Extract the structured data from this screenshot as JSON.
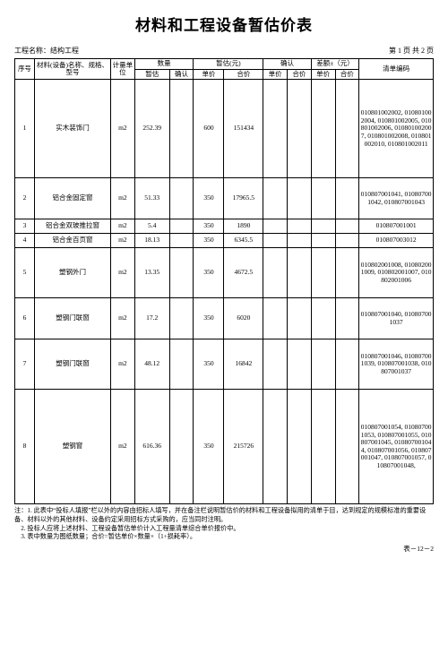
{
  "title": "材料和工程设备暂估价表",
  "meta": {
    "project_label": "工程名称：",
    "project_name": "结构工程",
    "page_info": "第 1 页 共 2 页"
  },
  "headers": {
    "seq": "序号",
    "name": "材料(设备)名称、规格、型号",
    "unit": "计量单位",
    "qty_group": "数量",
    "qty_est": "暂估",
    "qty_conf": "确认",
    "price_group": "暂估(元)",
    "price_unit": "单价",
    "price_total": "合价",
    "conf_group": "确认",
    "conf_unit": "单价",
    "conf_total": "合价",
    "diff_group": "差额±（元）",
    "diff_unit": "单价",
    "diff_total": "合价",
    "code": "清单编码"
  },
  "rows": [
    {
      "seq": "1",
      "name": "实木装饰门",
      "unit": "m2",
      "qty_est": "252.39",
      "qty_conf": "",
      "price_unit": "600",
      "price_total": "151434",
      "conf_unit": "",
      "conf_total": "",
      "diff_unit": "",
      "diff_total": "",
      "codes": "010801002002, 010801002004, 010801002005, 010801002006, 010801002007, 010801002008, 010801002010, 010801002011",
      "h": "row-tall"
    },
    {
      "seq": "2",
      "name": "铝合金固定窗",
      "unit": "m2",
      "qty_est": "51.33",
      "qty_conf": "",
      "price_unit": "350",
      "price_total": "17965.5",
      "conf_unit": "",
      "conf_total": "",
      "diff_unit": "",
      "diff_total": "",
      "codes": "010807001041, 010807001042, 010807001043",
      "h": "row-med"
    },
    {
      "seq": "3",
      "name": "铝合金双玻推拉窗",
      "unit": "m2",
      "qty_est": "5.4",
      "qty_conf": "",
      "price_unit": "350",
      "price_total": "1890",
      "conf_unit": "",
      "conf_total": "",
      "diff_unit": "",
      "diff_total": "",
      "codes": "010807001001",
      "h": "row-xs"
    },
    {
      "seq": "4",
      "name": "铝合金百页窗",
      "unit": "m2",
      "qty_est": "18.13",
      "qty_conf": "",
      "price_unit": "350",
      "price_total": "6345.5",
      "conf_unit": "",
      "conf_total": "",
      "diff_unit": "",
      "diff_total": "",
      "codes": "010807003012",
      "h": "row-xs"
    },
    {
      "seq": "5",
      "name": "塑钢外门",
      "unit": "m2",
      "qty_est": "13.35",
      "qty_conf": "",
      "price_unit": "350",
      "price_total": "4672.5",
      "conf_unit": "",
      "conf_total": "",
      "diff_unit": "",
      "diff_total": "",
      "codes": "010802001008, 010802001009, 010802001007, 010802001006",
      "h": "row-lg"
    },
    {
      "seq": "6",
      "name": "塑钢门联窗",
      "unit": "m2",
      "qty_est": "17.2",
      "qty_conf": "",
      "price_unit": "350",
      "price_total": "6020",
      "conf_unit": "",
      "conf_total": "",
      "diff_unit": "",
      "diff_total": "",
      "codes": "010807001040, 010807001037",
      "h": "row-med"
    },
    {
      "seq": "7",
      "name": "塑钢门联窗",
      "unit": "m2",
      "qty_est": "48.12",
      "qty_conf": "",
      "price_unit": "350",
      "price_total": "16842",
      "conf_unit": "",
      "conf_total": "",
      "diff_unit": "",
      "diff_total": "",
      "codes": "010807001046, 010807001039, 010807001038, 010807001037",
      "h": "row-lg"
    },
    {
      "seq": "8",
      "name": "塑钢窗",
      "unit": "m2",
      "qty_est": "616.36",
      "qty_conf": "",
      "price_unit": "350",
      "price_total": "215726",
      "conf_unit": "",
      "conf_total": "",
      "diff_unit": "",
      "diff_total": "",
      "codes": "010807001054, 010807001053, 010807001055, 010807001045, 010807001044, 010807001056, 010807001047, 010807001057, 010807001048,",
      "h": "row-xl"
    }
  ],
  "notes": {
    "prefix": "注：",
    "n1": "1. 此表中“投标人填报”栏以外的内容由招标人填写，并在备注栏说明暂估价的材料和工程设备拟用的清单于目，达到规定的规模标准的重要设备、材料以外的其他材料、设备约定采用招标方式采购的，应当同时注明。",
    "n2": "2. 投标人应将上述材料、工程设备暂估单价计入工程量清单综合单价报价中。",
    "n3": "3. 表中数量为图纸数量；合价=暂估单价×数量×（1+损耗率）。"
  },
  "footer_code": "表－12－2"
}
